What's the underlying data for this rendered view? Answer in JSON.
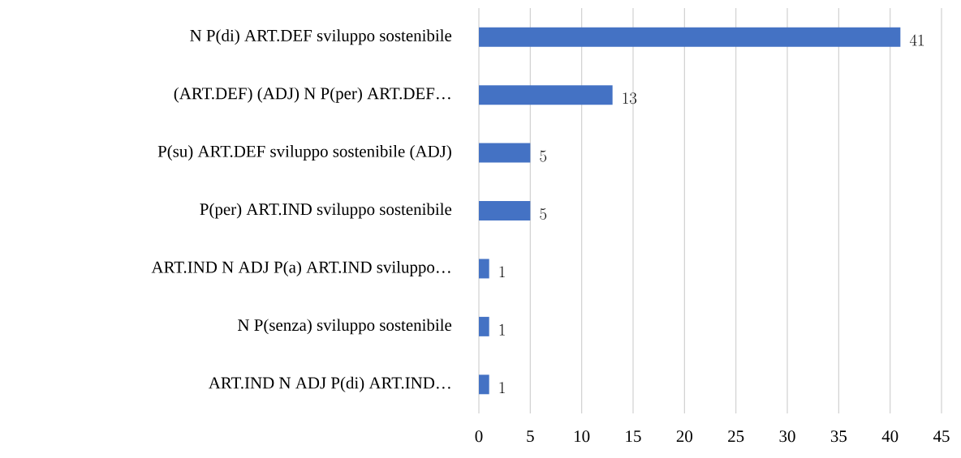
{
  "chart_data": {
    "type": "bar",
    "orientation": "horizontal",
    "categories": [
      "N P(di) ART.DEF sviluppo sostenibile",
      "(ART.DEF) (ADJ) N P(per) ART.DEF…",
      "P(su) ART.DEF sviluppo sostenibile (ADJ)",
      "P(per) ART.IND sviluppo sostenibile",
      "ART.IND N ADJ P(a) ART.IND sviluppo…",
      "N P(senza) sviluppo sostenibile",
      "ART.IND N ADJ P(di) ART.IND…"
    ],
    "values": [
      41,
      13,
      5,
      5,
      1,
      1,
      1
    ],
    "color": "#4472c4",
    "xlim": [
      0,
      45
    ],
    "xticks": [
      0,
      5,
      10,
      15,
      20,
      25,
      30,
      35,
      40,
      45
    ],
    "grid": "x",
    "data_labels": true
  }
}
